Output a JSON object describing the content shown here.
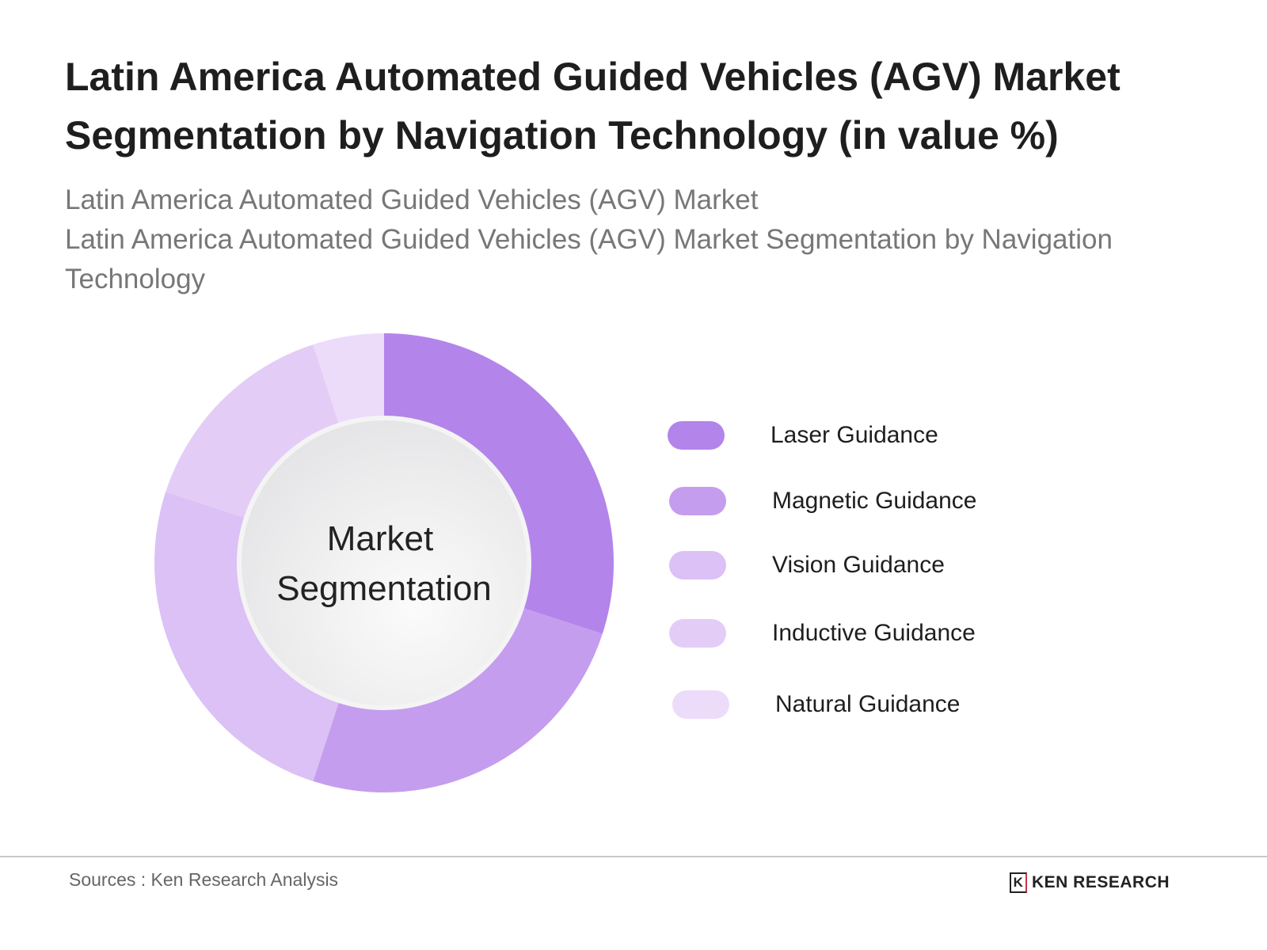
{
  "title": "Latin America Automated Guided Vehicles (AGV) Market Segmentation by Navigation Technology (in value %)",
  "subtitle_lines": [
    "Latin America Automated Guided Vehicles (AGV) Market",
    "Latin America Automated Guided Vehicles (AGV) Market Segmentation by Navigation Technology"
  ],
  "chart_data": {
    "type": "pie",
    "variant": "donut",
    "center_label": [
      "Market",
      "Segmentation"
    ],
    "categories": [
      "Laser Guidance",
      "Magnetic Guidance",
      "Vision Guidance",
      "Inductive Guidance",
      "Natural Guidance"
    ],
    "values": [
      30,
      25,
      25,
      15,
      5
    ],
    "colors": [
      "#b384ea",
      "#c59def",
      "#dbc1f5",
      "#e3cdf7",
      "#ecdcfa"
    ],
    "legend_position": "right"
  },
  "footer": {
    "source": "Sources : Ken Research Analysis",
    "logo_text": "KEN RESEARCH"
  }
}
